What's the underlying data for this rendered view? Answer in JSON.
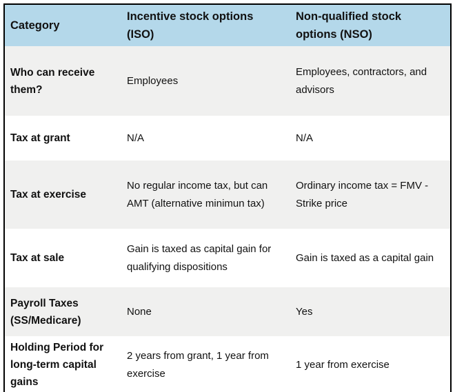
{
  "table": {
    "columns": [
      {
        "label": "Category"
      },
      {
        "label": "Incentive stock options (ISO)"
      },
      {
        "label": "Non-qualified stock options (NSO)"
      }
    ],
    "rows": [
      {
        "category": "Who can receive them?",
        "iso": "Employees",
        "nso": "Employees, contractors, and advisors"
      },
      {
        "category": "Tax at grant",
        "iso": "N/A",
        "nso": "N/A"
      },
      {
        "category": "Tax at exercise",
        "iso": "No regular income tax, but can AMT (alternative minimun tax)",
        "nso": "Ordinary income tax = FMV - Strike price"
      },
      {
        "category": "Tax at sale",
        "iso": "Gain is taxed as capital gain for qualifying dispositions",
        "nso": "Gain is taxed as a capital gain"
      },
      {
        "category": "Payroll Taxes (SS/Medicare)",
        "iso": "None",
        "nso": "Yes"
      },
      {
        "category": "Holding Period for long-term capital gains",
        "iso": "2 years from grant, 1 year from exercise",
        "nso": "1 year from exercise"
      }
    ]
  },
  "colors": {
    "header_bg": "#b4d8ea",
    "row_alt_bg": "#f0f0ef",
    "row_bg": "#ffffff",
    "border": "#000000",
    "text": "#111111"
  }
}
